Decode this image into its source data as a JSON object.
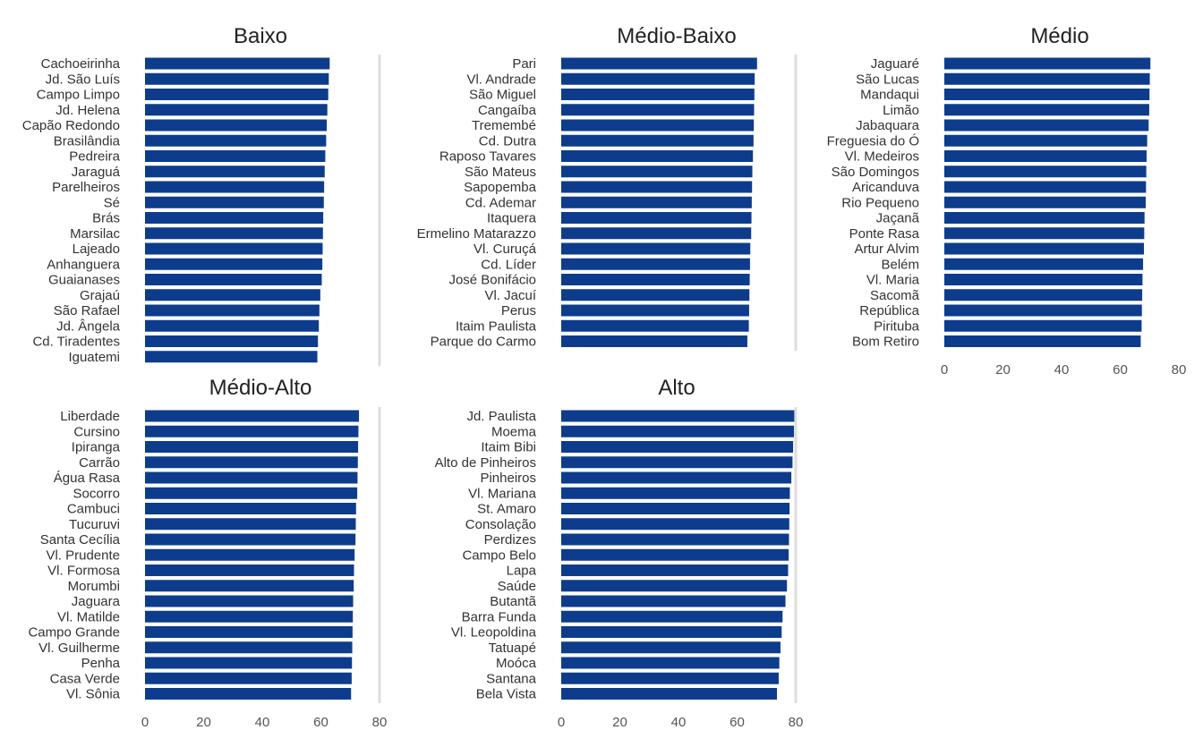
{
  "chart_data": [
    {
      "type": "bar",
      "orientation": "horizontal",
      "title": "Baixo",
      "bar_color": "#0d3c8c",
      "xlim": [
        0,
        80
      ],
      "xticks": [
        0,
        20,
        40,
        60,
        80
      ],
      "grid": false,
      "categories": [
        "Cachoeirinha",
        "Jd. São Luís",
        "Campo Limpo",
        "Jd. Helena",
        "Capão Redondo",
        "Brasilândia",
        "Pedreira",
        "Jaraguá",
        "Parelheiros",
        "Sé",
        "Brás",
        "Marsilac",
        "Lajeado",
        "Anhanguera",
        "Guaianases",
        "Grajaú",
        "São Rafael",
        "Jd. Ângela",
        "Cd. Tiradentes",
        "Iguatemi"
      ],
      "values": [
        63,
        62.7,
        62.5,
        62.2,
        62,
        61.8,
        61.5,
        61.3,
        61.1,
        61,
        60.8,
        60.7,
        60.6,
        60.5,
        60.3,
        59.8,
        59.5,
        59.3,
        59,
        58.8
      ]
    },
    {
      "type": "bar",
      "orientation": "horizontal",
      "title": "Médio-Baixo",
      "bar_color": "#0d3c8c",
      "xlim": [
        0,
        80
      ],
      "xticks": [
        0,
        20,
        40,
        60,
        80
      ],
      "grid": false,
      "categories": [
        "Pari",
        "Vl. Andrade",
        "São Miguel",
        "Cangaíba",
        "Tremembé",
        "Cd. Dutra",
        "Raposo Tavares",
        "São Mateus",
        "Sapopemba",
        "Cd. Ademar",
        "Itaquera",
        "Ermelino Matarazzo",
        "Vl. Curuçá",
        "Cd. Líder",
        "José Bonifácio",
        "Vl. Jacuí",
        "Perus",
        "Itaim Paulista",
        "Parque do Carmo"
      ],
      "values": [
        66.8,
        66,
        65.9,
        65.8,
        65.7,
        65.6,
        65.4,
        65.2,
        65.1,
        65,
        64.9,
        64.8,
        64.5,
        64.4,
        64.3,
        64.2,
        64.1,
        64,
        63.5
      ]
    },
    {
      "type": "bar",
      "orientation": "horizontal",
      "title": "Médio",
      "bar_color": "#0d3c8c",
      "xlim": [
        0,
        80
      ],
      "xticks": [
        0,
        20,
        40,
        60,
        80
      ],
      "grid": false,
      "categories": [
        "Jaguaré",
        "São Lucas",
        "Mandaqui",
        "Limão",
        "Jabaquara",
        "Freguesia do Ó",
        "Vl. Medeiros",
        "São Domingos",
        "Aricanduva",
        "Rio Pequeno",
        "Jaçanã",
        "Ponte Rasa",
        "Artur Alvim",
        "Belém",
        "Vl. Maria",
        "Sacomã",
        "República",
        "Pirituba",
        "Bom Retiro"
      ],
      "values": [
        70.3,
        70.1,
        70,
        69.9,
        69.7,
        69.2,
        69,
        68.9,
        68.8,
        68.7,
        68.3,
        68.2,
        68.1,
        67.8,
        67.6,
        67.5,
        67.4,
        67.3,
        67
      ]
    },
    {
      "type": "bar",
      "orientation": "horizontal",
      "title": "Médio-Alto",
      "bar_color": "#0d3c8c",
      "xlim": [
        0,
        80
      ],
      "xticks": [
        0,
        20,
        40,
        60,
        80
      ],
      "grid": false,
      "categories": [
        "Liberdade",
        "Cursino",
        "Ipiranga",
        "Carrão",
        "Água Rasa",
        "Socorro",
        "Cambuci",
        "Tucuruvi",
        "Santa Cecília",
        "Vl. Prudente",
        "Vl. Formosa",
        "Morumbi",
        "Jaguara",
        "Vl. Matilde",
        "Campo Grande",
        "Vl. Guilherme",
        "Penha",
        "Casa Verde",
        "Vl. Sônia"
      ],
      "values": [
        73,
        72.8,
        72.7,
        72.6,
        72.5,
        72.4,
        72,
        71.9,
        71.8,
        71.5,
        71.3,
        71.2,
        71,
        70.9,
        70.8,
        70.7,
        70.6,
        70.5,
        70.3
      ]
    },
    {
      "type": "bar",
      "orientation": "horizontal",
      "title": "Alto",
      "bar_color": "#0d3c8c",
      "xlim": [
        0,
        80
      ],
      "xticks": [
        0,
        20,
        40,
        60,
        80
      ],
      "grid": false,
      "categories": [
        "Jd. Paulista",
        "Moema",
        "Itaim Bibi",
        "Alto de Pinheiros",
        "Pinheiros",
        "Vl. Mariana",
        "St. Amaro",
        "Consolação",
        "Perdizes",
        "Campo Belo",
        "Lapa",
        "Saúde",
        "Butantã",
        "Barra Funda",
        "Vl. Leopoldina",
        "Tatuapé",
        "Moóca",
        "Santana",
        "Bela Vista"
      ],
      "values": [
        79.5,
        79.4,
        79.1,
        78.9,
        78.5,
        78,
        77.9,
        77.8,
        77.7,
        77.6,
        77.4,
        77,
        76.5,
        75.5,
        75.2,
        74.8,
        74.4,
        74.2,
        73.6
      ]
    }
  ]
}
